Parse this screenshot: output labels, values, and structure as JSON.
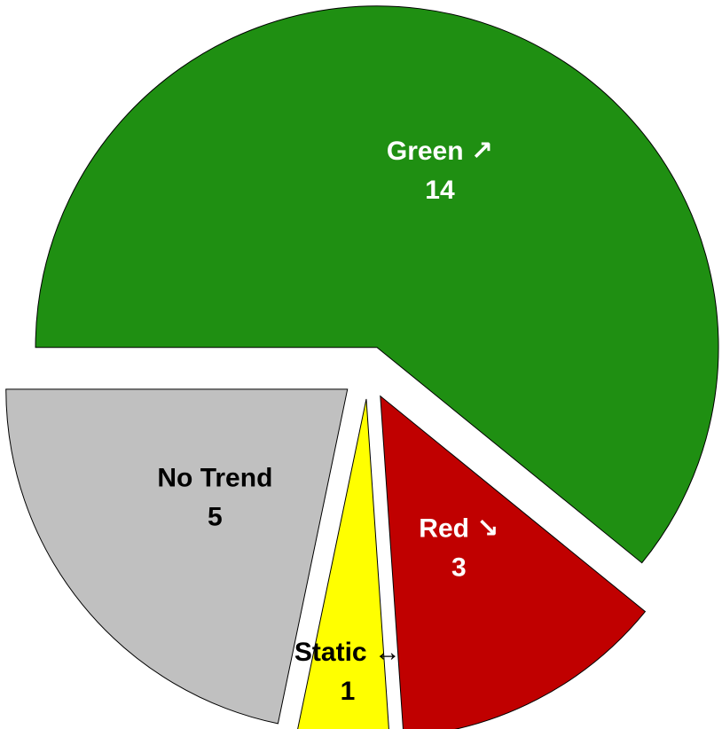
{
  "chart_data": {
    "type": "pie",
    "categories": [
      "Green ↗",
      "Red ↘",
      "Static ↔",
      "No Trend"
    ],
    "values": [
      14,
      3,
      1,
      5
    ],
    "colors": [
      "#1f8f12",
      "#c00000",
      "#ffff00",
      "#c0c0c0"
    ],
    "label_colors": [
      "#ffffff",
      "#ffffff",
      "#000000",
      "#000000"
    ],
    "exploded": true
  }
}
